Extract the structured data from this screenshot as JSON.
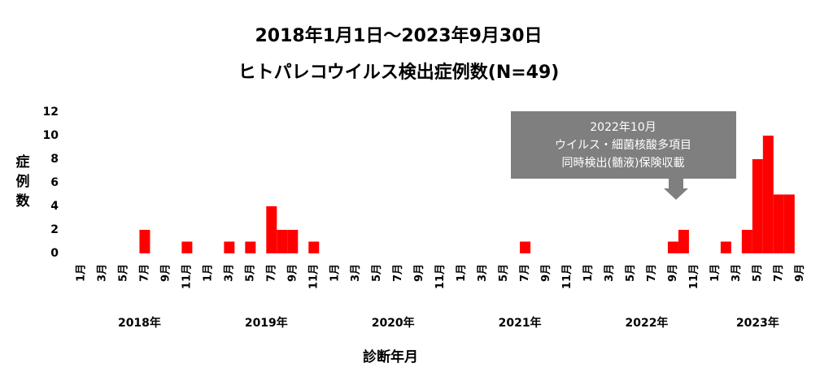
{
  "chart_data": {
    "type": "bar",
    "title": [
      "2018年1月1日～2023年9月30日",
      "ヒトパレコウイルス検出症例数(N=49)"
    ],
    "y_label": "症例数",
    "x_label": "診断年月",
    "categories": [
      "1月",
      null,
      "3月",
      null,
      "5月",
      null,
      "7月",
      null,
      "9月",
      null,
      "11月",
      null,
      "1月",
      null,
      "3月",
      null,
      "5月",
      null,
      "7月",
      null,
      "9月",
      null,
      "11月",
      null,
      "1月",
      null,
      "3月",
      null,
      "5月",
      null,
      "7月",
      null,
      "9月",
      null,
      "11月",
      null,
      "1月",
      null,
      "3月",
      null,
      "5月",
      null,
      "7月",
      null,
      "9月",
      null,
      "11月",
      null,
      "1月",
      null,
      "3月",
      null,
      "5月",
      null,
      "7月",
      null,
      "9月",
      null,
      "11月",
      null,
      "1月",
      null,
      "3月",
      null,
      "5月",
      null,
      "7月",
      null,
      "9月"
    ],
    "year_labels": [
      "2018年",
      "2019年",
      "2020年",
      "2021年",
      "2022年",
      "2023年"
    ],
    "values": [
      0,
      0,
      0,
      0,
      0,
      0,
      2,
      0,
      0,
      0,
      1,
      0,
      0,
      0,
      1,
      0,
      1,
      0,
      4,
      2,
      2,
      0,
      1,
      0,
      0,
      0,
      0,
      0,
      0,
      0,
      0,
      0,
      0,
      0,
      0,
      0,
      0,
      0,
      0,
      0,
      0,
      0,
      1,
      0,
      0,
      0,
      0,
      0,
      0,
      0,
      0,
      0,
      0,
      0,
      0,
      0,
      1,
      2,
      0,
      0,
      0,
      1,
      0,
      2,
      8,
      10,
      5,
      5,
      0
    ],
    "color": "#ff0000",
    "ylim": [
      0,
      12
    ],
    "yticks": [
      0,
      2,
      4,
      6,
      8,
      10,
      12
    ],
    "annotation": [
      "2022年10月",
      "ウイルス・細菌核酸多項目",
      "同時検出(髄液)保険収載"
    ]
  }
}
